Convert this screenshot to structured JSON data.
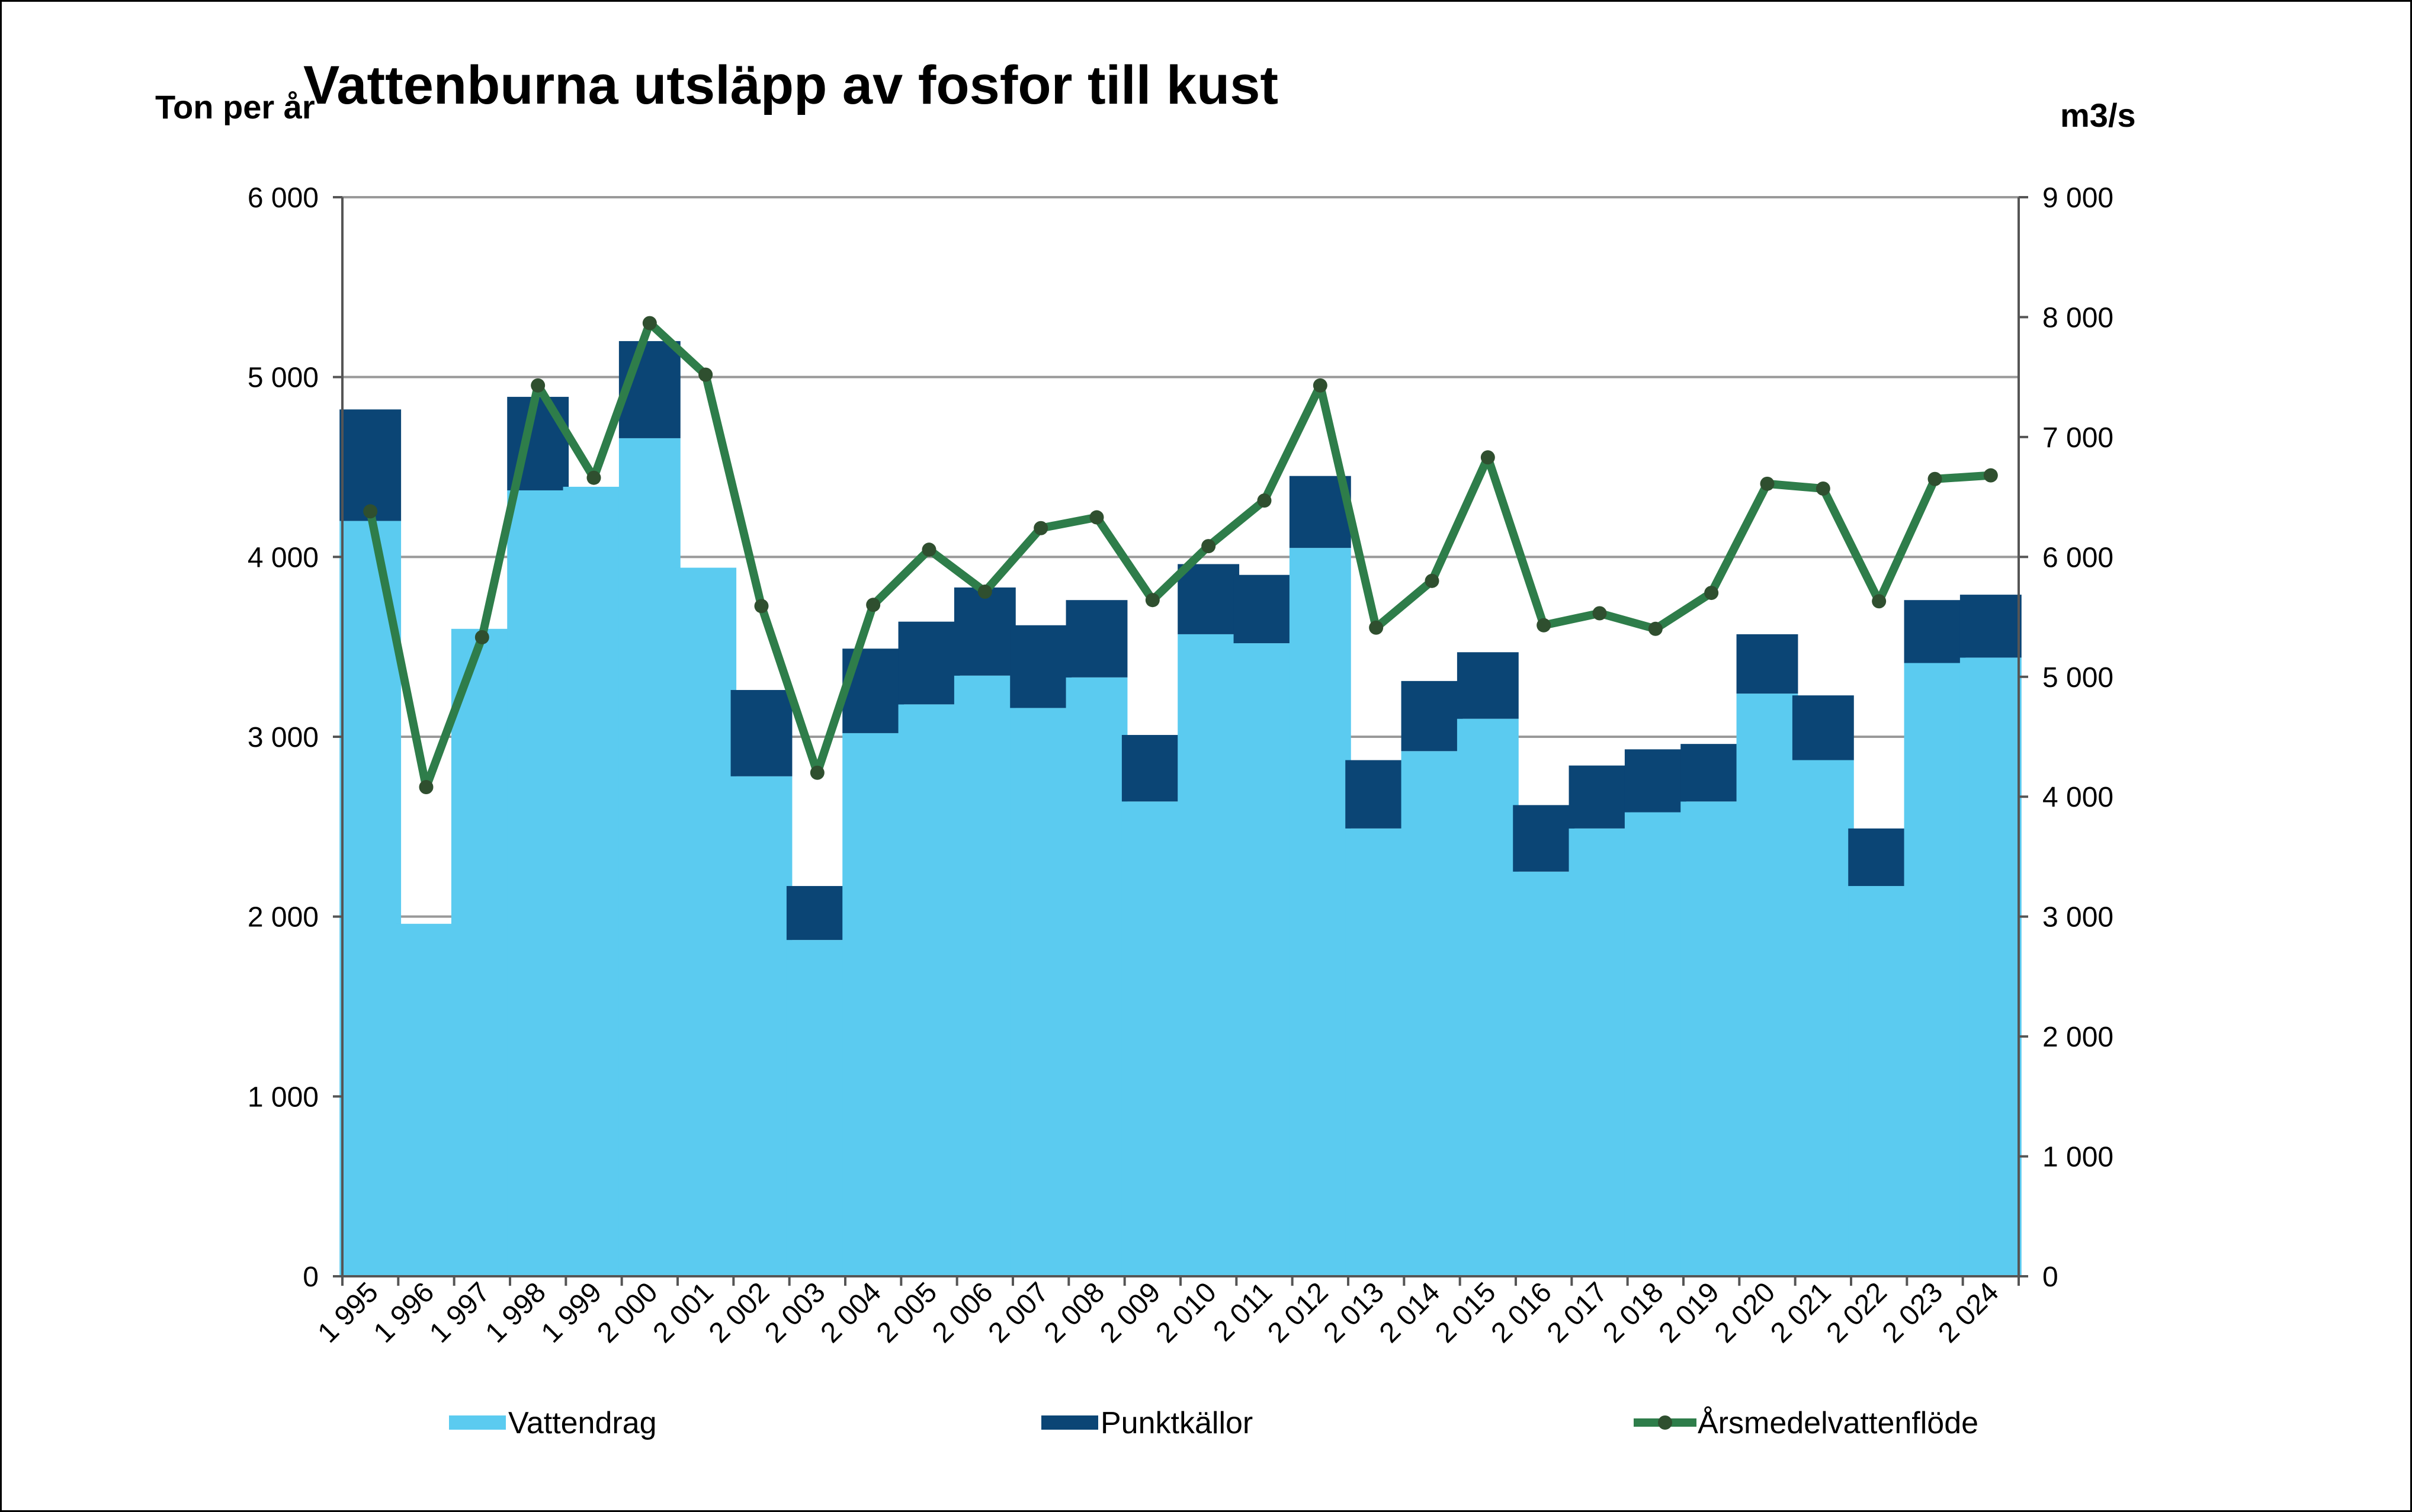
{
  "chart_data": {
    "type": "bar",
    "stacked": true,
    "title": "Vattenburna utsläpp av fosfor till kust",
    "ylabel_left": "Ton per år",
    "ylabel_right": "m3/s",
    "ylim_left": [
      0,
      6000
    ],
    "ylim_right": [
      0,
      9000
    ],
    "yticks_left": [
      "0",
      "1 000",
      "2 000",
      "3 000",
      "4 000",
      "5 000",
      "6 000"
    ],
    "yticks_right": [
      "0",
      "1 000",
      "2 000",
      "3 000",
      "4 000",
      "5 000",
      "6 000",
      "7 000",
      "8 000",
      "9 000"
    ],
    "grid": true,
    "legend_position": "bottom",
    "categories": [
      "1 995",
      "1 996",
      "1 997",
      "1 998",
      "1 999",
      "2 000",
      "2 001",
      "2 002",
      "2 003",
      "2 004",
      "2 005",
      "2 006",
      "2 007",
      "2 008",
      "2 009",
      "2 010",
      "2 011",
      "2 012",
      "2 013",
      "2 014",
      "2 015",
      "2 016",
      "2 017",
      "2 018",
      "2 019",
      "2 020",
      "2 021",
      "2 022",
      "2 023",
      "2 024"
    ],
    "series": [
      {
        "name": "Vattendrag",
        "color": "#5BCBF0",
        "axis": "left",
        "kind": "bar",
        "values": [
          4200,
          1960,
          3600,
          4370,
          4390,
          4660,
          3940,
          2780,
          1870,
          3020,
          3180,
          3340,
          3160,
          3330,
          2640,
          3570,
          3520,
          4050,
          2490,
          2920,
          3100,
          2250,
          2490,
          2580,
          2640,
          3240,
          2870,
          2170,
          3410,
          3440
        ]
      },
      {
        "name": "Punktkällor",
        "color": "#0B4575",
        "axis": "left",
        "kind": "bar",
        "values": [
          620,
          0,
          0,
          520,
          0,
          540,
          0,
          480,
          300,
          470,
          460,
          490,
          460,
          430,
          370,
          390,
          380,
          400,
          380,
          390,
          370,
          370,
          350,
          350,
          320,
          330,
          360,
          320,
          350,
          350
        ]
      },
      {
        "name": "Årsmedelvattenflöde",
        "color": "#2E7D4A",
        "marker_color": "#2F4F2F",
        "axis": "right",
        "kind": "line",
        "values": [
          6380,
          4080,
          5330,
          7430,
          6660,
          7950,
          7520,
          5590,
          4200,
          5600,
          6060,
          5710,
          6240,
          6330,
          5640,
          6090,
          6470,
          7430,
          5410,
          5800,
          6830,
          5430,
          5530,
          5400,
          5700,
          6610,
          6570,
          5630,
          6650,
          6680
        ]
      }
    ]
  }
}
